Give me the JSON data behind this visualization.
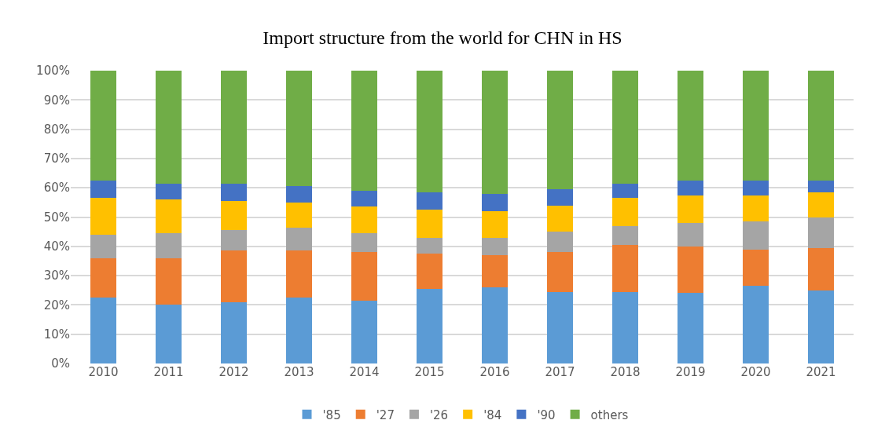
{
  "chart_data": {
    "type": "bar",
    "stacked": true,
    "title": "Import structure from the world for CHN in HS",
    "categories": [
      "2010",
      "2011",
      "2012",
      "2013",
      "2014",
      "2015",
      "2016",
      "2017",
      "2018",
      "2019",
      "2020",
      "2021"
    ],
    "series": [
      {
        "name": "'85",
        "color": "#5b9bd5",
        "values": [
          22.5,
          20,
          21,
          22.5,
          21.5,
          25.5,
          26,
          24.5,
          24.5,
          24,
          26.5,
          25
        ]
      },
      {
        "name": "'27",
        "color": "#ed7d31",
        "values": [
          13.5,
          16,
          17.5,
          16,
          16.5,
          12,
          11,
          13.5,
          16,
          16,
          12.5,
          14.5
        ]
      },
      {
        "name": "'26",
        "color": "#a5a5a5",
        "values": [
          8,
          8.5,
          7,
          8,
          6.5,
          5.5,
          6,
          7,
          6.5,
          8,
          9.5,
          10.5
        ]
      },
      {
        "name": "'84",
        "color": "#ffc000",
        "values": [
          12.5,
          11.5,
          10,
          8.5,
          9,
          9.5,
          9,
          9,
          9.5,
          9.5,
          9,
          8.5
        ]
      },
      {
        "name": "'90",
        "color": "#4472c4",
        "values": [
          6,
          5.5,
          6,
          5.5,
          5.5,
          6,
          6,
          5.5,
          5,
          5,
          5,
          4
        ]
      },
      {
        "name": "others",
        "color": "#70ad47",
        "values": [
          37.5,
          38.5,
          38.5,
          39.5,
          41,
          41.5,
          42,
          40.5,
          38.5,
          37.5,
          37.5,
          37.5
        ]
      }
    ],
    "ylim": [
      0,
      100
    ],
    "yticks": [
      {
        "value": 0,
        "label": "0%"
      },
      {
        "value": 10,
        "label": "10%"
      },
      {
        "value": 20,
        "label": "20%"
      },
      {
        "value": 30,
        "label": "30%"
      },
      {
        "value": 40,
        "label": "40%"
      },
      {
        "value": 50,
        "label": "50%"
      },
      {
        "value": 60,
        "label": "60%"
      },
      {
        "value": 70,
        "label": "70%"
      },
      {
        "value": 80,
        "label": "80%"
      },
      {
        "value": 90,
        "label": "90%"
      },
      {
        "value": 100,
        "label": "100%"
      }
    ],
    "grid": "y",
    "legend": "bottom"
  }
}
